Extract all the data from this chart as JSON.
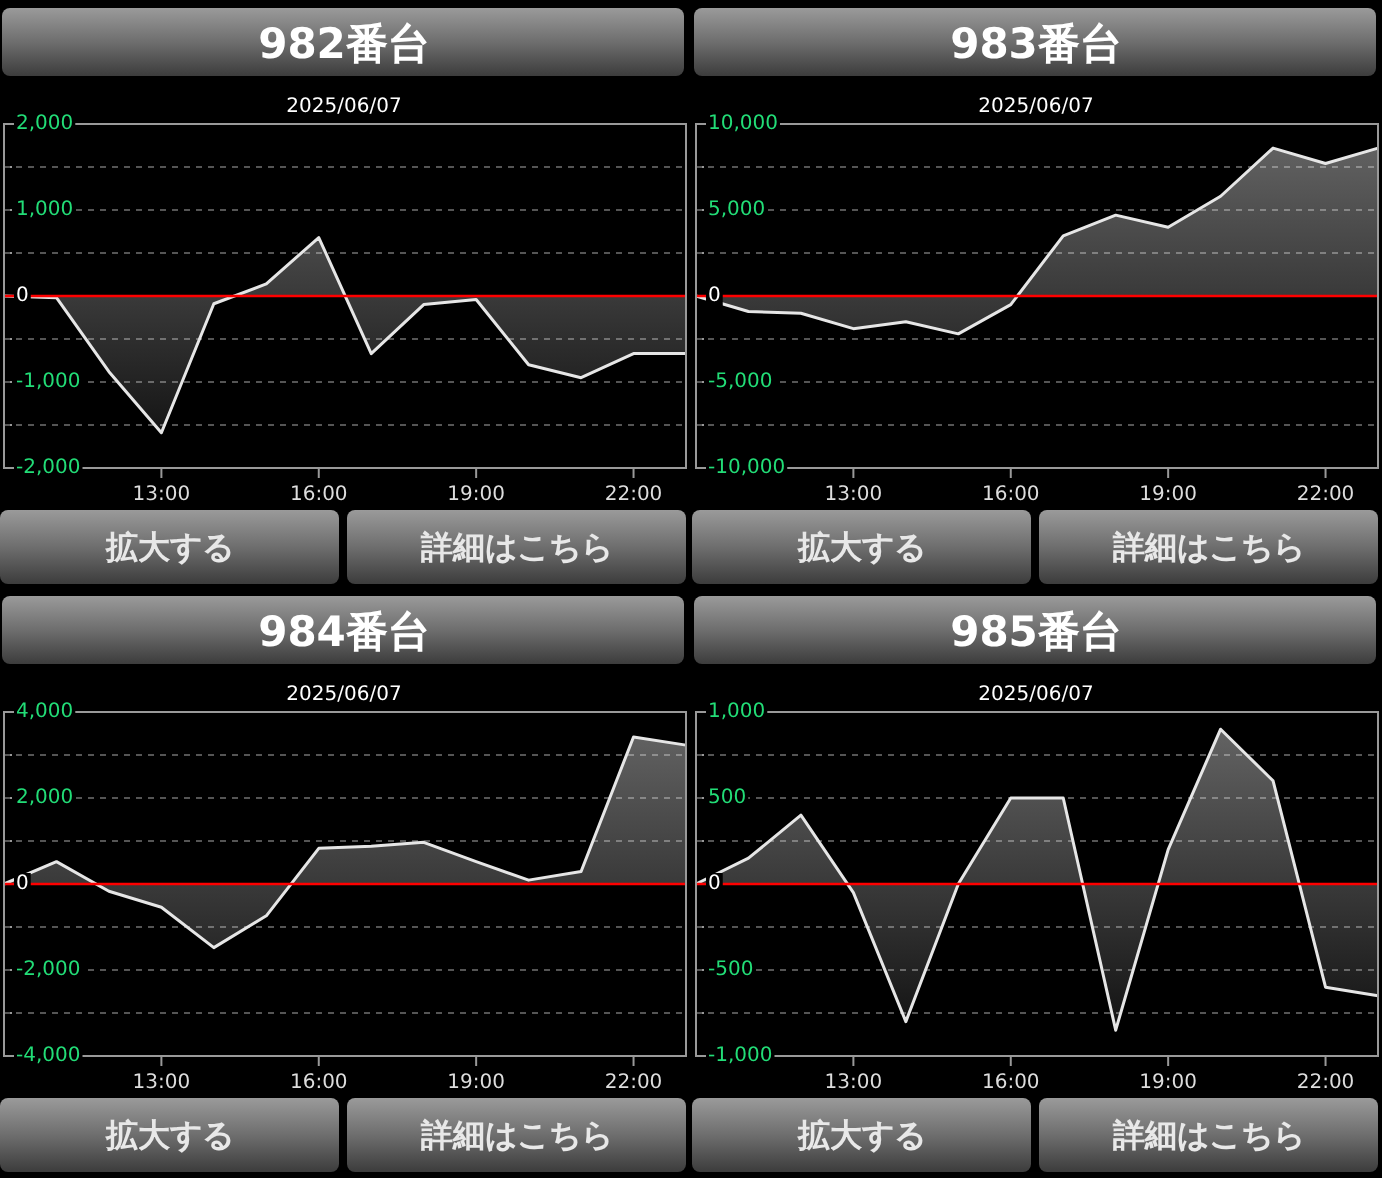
{
  "chart_data": [
    {
      "type": "area",
      "title": "982番台",
      "subtitle": "2025/06/07",
      "x": [
        10,
        11,
        12,
        13,
        14,
        15,
        16,
        17,
        18,
        19,
        20,
        21,
        22,
        23
      ],
      "series": [
        {
          "color": "#e6e6e6",
          "values": [
            0,
            -20,
            -880,
            -1590,
            -90,
            140,
            680,
            -670,
            -100,
            -40,
            -800,
            -950,
            -670,
            -670
          ]
        }
      ],
      "xlim": [
        10,
        23
      ],
      "xticks": [
        {
          "value": 13,
          "label": "13:00"
        },
        {
          "value": 16,
          "label": "16:00"
        },
        {
          "value": 19,
          "label": "19:00"
        },
        {
          "value": 22,
          "label": "22:00"
        }
      ],
      "ylim": [
        -2000,
        2000
      ],
      "yticks": [
        {
          "value": -2000,
          "label": "-2,000"
        },
        {
          "value": -1500,
          "label": null
        },
        {
          "value": -1000,
          "label": "-1,000"
        },
        {
          "value": -500,
          "label": null
        },
        {
          "value": 0,
          "label": "0"
        },
        {
          "value": 500,
          "label": null
        },
        {
          "value": 1000,
          "label": "1,000"
        },
        {
          "value": 1500,
          "label": null
        },
        {
          "value": 2000,
          "label": "2,000"
        }
      ],
      "grid": "y",
      "ref_lines": [
        {
          "axis": "y",
          "value": 0,
          "color": "#ff0000"
        }
      ],
      "annotations": [
        "拡大する",
        "詳細はこちら"
      ]
    },
    {
      "type": "area",
      "title": "983番台",
      "subtitle": "2025/06/07",
      "x": [
        10,
        11,
        12,
        13,
        14,
        15,
        16,
        17,
        18,
        19,
        20,
        21,
        22,
        23
      ],
      "series": [
        {
          "color": "#e6e6e6",
          "values": [
            0,
            -900,
            -1000,
            -1900,
            -1500,
            -2200,
            -500,
            3500,
            4700,
            4000,
            5800,
            8600,
            7700,
            8600
          ]
        }
      ],
      "xlim": [
        10,
        23
      ],
      "xticks": [
        {
          "value": 13,
          "label": "13:00"
        },
        {
          "value": 16,
          "label": "16:00"
        },
        {
          "value": 19,
          "label": "19:00"
        },
        {
          "value": 22,
          "label": "22:00"
        }
      ],
      "ylim": [
        -10000,
        10000
      ],
      "yticks": [
        {
          "value": -10000,
          "label": "-10,000"
        },
        {
          "value": -7500,
          "label": null
        },
        {
          "value": -5000,
          "label": "-5,000"
        },
        {
          "value": -2500,
          "label": null
        },
        {
          "value": 0,
          "label": "0"
        },
        {
          "value": 2500,
          "label": null
        },
        {
          "value": 5000,
          "label": "5,000"
        },
        {
          "value": 7500,
          "label": null
        },
        {
          "value": 10000,
          "label": "10,000"
        }
      ],
      "grid": "y",
      "ref_lines": [
        {
          "axis": "y",
          "value": 0,
          "color": "#ff0000"
        }
      ],
      "annotations": [
        "拡大する",
        "詳細はこちら"
      ]
    },
    {
      "type": "area",
      "title": "984番台",
      "subtitle": "2025/06/07",
      "x": [
        10,
        11,
        12,
        13,
        14,
        15,
        16,
        17,
        18,
        19,
        20,
        21,
        22,
        23
      ],
      "series": [
        {
          "color": "#e6e6e6",
          "values": [
            0,
            520,
            -170,
            -540,
            -1480,
            -740,
            830,
            880,
            970,
            520,
            90,
            290,
            3420,
            3230
          ]
        }
      ],
      "xlim": [
        10,
        23
      ],
      "xticks": [
        {
          "value": 13,
          "label": "13:00"
        },
        {
          "value": 16,
          "label": "16:00"
        },
        {
          "value": 19,
          "label": "19:00"
        },
        {
          "value": 22,
          "label": "22:00"
        }
      ],
      "ylim": [
        -4000,
        4000
      ],
      "yticks": [
        {
          "value": -4000,
          "label": "-4,000"
        },
        {
          "value": -3000,
          "label": null
        },
        {
          "value": -2000,
          "label": "-2,000"
        },
        {
          "value": -1000,
          "label": null
        },
        {
          "value": 0,
          "label": "0"
        },
        {
          "value": 1000,
          "label": null
        },
        {
          "value": 2000,
          "label": "2,000"
        },
        {
          "value": 3000,
          "label": null
        },
        {
          "value": 4000,
          "label": "4,000"
        }
      ],
      "grid": "y",
      "ref_lines": [
        {
          "axis": "y",
          "value": 0,
          "color": "#ff0000"
        }
      ],
      "annotations": [
        "拡大する",
        "詳細はこちら"
      ]
    },
    {
      "type": "area",
      "title": "985番台",
      "subtitle": "2025/06/07",
      "x": [
        10,
        11,
        12,
        13,
        14,
        15,
        16,
        17,
        18,
        19,
        20,
        21,
        22,
        23
      ],
      "series": [
        {
          "color": "#e6e6e6",
          "values": [
            0,
            150,
            400,
            -50,
            -800,
            0,
            500,
            500,
            -850,
            200,
            900,
            600,
            -600,
            -650
          ]
        }
      ],
      "xlim": [
        10,
        23
      ],
      "xticks": [
        {
          "value": 13,
          "label": "13:00"
        },
        {
          "value": 16,
          "label": "16:00"
        },
        {
          "value": 19,
          "label": "19:00"
        },
        {
          "value": 22,
          "label": "22:00"
        }
      ],
      "ylim": [
        -1000,
        1000
      ],
      "yticks": [
        {
          "value": -1000,
          "label": "-1,000"
        },
        {
          "value": -750,
          "label": null
        },
        {
          "value": -500,
          "label": "-500"
        },
        {
          "value": -250,
          "label": null
        },
        {
          "value": 0,
          "label": "0"
        },
        {
          "value": 250,
          "label": null
        },
        {
          "value": 500,
          "label": "500"
        },
        {
          "value": 750,
          "label": null
        },
        {
          "value": 1000,
          "label": "1,000"
        }
      ],
      "grid": "y",
      "ref_lines": [
        {
          "axis": "y",
          "value": 0,
          "color": "#ff0000"
        }
      ],
      "annotations": [
        "拡大する",
        "詳細はこちら"
      ]
    }
  ]
}
